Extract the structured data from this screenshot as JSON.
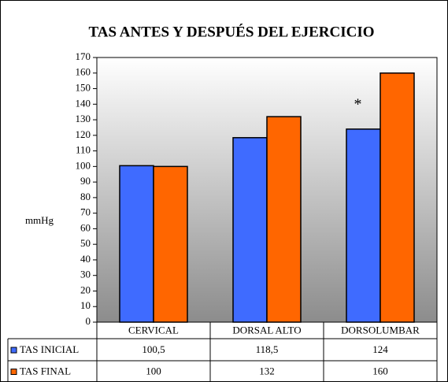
{
  "chart_data": {
    "type": "bar",
    "title": "TAS ANTES Y DESPUÉS DEL EJERCICIO",
    "y_label": "mmHg",
    "categories": [
      "CERVICAL",
      "DORSAL ALTO",
      "DORSOLUMBAR"
    ],
    "series": [
      {
        "name": "TAS INICIAL",
        "color": "#3f6bff",
        "values": [
          100.5,
          118.5,
          124
        ],
        "value_labels": [
          "100,5",
          "118,5",
          "124"
        ]
      },
      {
        "name": "TAS FINAL",
        "color": "#ff6600",
        "values": [
          100,
          132,
          160
        ]
      }
    ],
    "annotations": [
      "*"
    ],
    "ylim": [
      0,
      170
    ],
    "yticks": [
      0,
      10,
      20,
      30,
      40,
      50,
      60,
      70,
      80,
      90,
      100,
      110,
      120,
      130,
      140,
      150,
      160,
      170
    ],
    "grid": false
  }
}
